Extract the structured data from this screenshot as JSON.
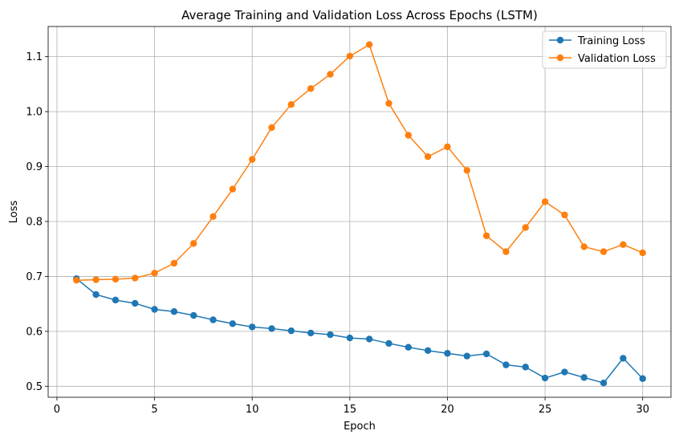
{
  "chart_data": {
    "type": "line",
    "title": "Average Training and Validation Loss Across Epochs (LSTM)",
    "xlabel": "Epoch",
    "ylabel": "Loss",
    "xlim": [
      -0.45,
      31.45
    ],
    "ylim": [
      0.48,
      1.155
    ],
    "xticks": [
      0,
      5,
      10,
      15,
      20,
      25,
      30
    ],
    "yticks": [
      0.5,
      0.6,
      0.7,
      0.8,
      0.9,
      1.0,
      1.1
    ],
    "xtick_labels": [
      "0",
      "5",
      "10",
      "15",
      "20",
      "25",
      "30"
    ],
    "ytick_labels": [
      "0.5",
      "0.6",
      "0.7",
      "0.8",
      "0.9",
      "1.0",
      "1.1"
    ],
    "grid": true,
    "legend_position": "top-right",
    "x": [
      1,
      2,
      3,
      4,
      5,
      6,
      7,
      8,
      9,
      10,
      11,
      12,
      13,
      14,
      15,
      16,
      17,
      18,
      19,
      20,
      21,
      22,
      23,
      24,
      25,
      26,
      27,
      28,
      29,
      30
    ],
    "series": [
      {
        "name": "Training Loss",
        "color": "#1f77b4",
        "marker": "circle",
        "values": [
          0.696,
          0.667,
          0.657,
          0.651,
          0.64,
          0.636,
          0.629,
          0.621,
          0.614,
          0.608,
          0.605,
          0.601,
          0.597,
          0.594,
          0.588,
          0.586,
          0.578,
          0.571,
          0.565,
          0.56,
          0.555,
          0.559,
          0.539,
          0.535,
          0.515,
          0.526,
          0.516,
          0.506,
          0.551,
          0.514
        ]
      },
      {
        "name": "Validation Loss",
        "color": "#ff7f0e",
        "marker": "circle",
        "values": [
          0.693,
          0.694,
          0.695,
          0.697,
          0.706,
          0.724,
          0.76,
          0.809,
          0.859,
          0.913,
          0.971,
          1.013,
          1.042,
          1.068,
          1.101,
          1.122,
          1.015,
          0.957,
          0.918,
          0.936,
          0.893,
          0.774,
          0.745,
          0.789,
          0.836,
          0.812,
          0.754,
          0.745,
          0.758,
          0.743
        ]
      }
    ]
  }
}
